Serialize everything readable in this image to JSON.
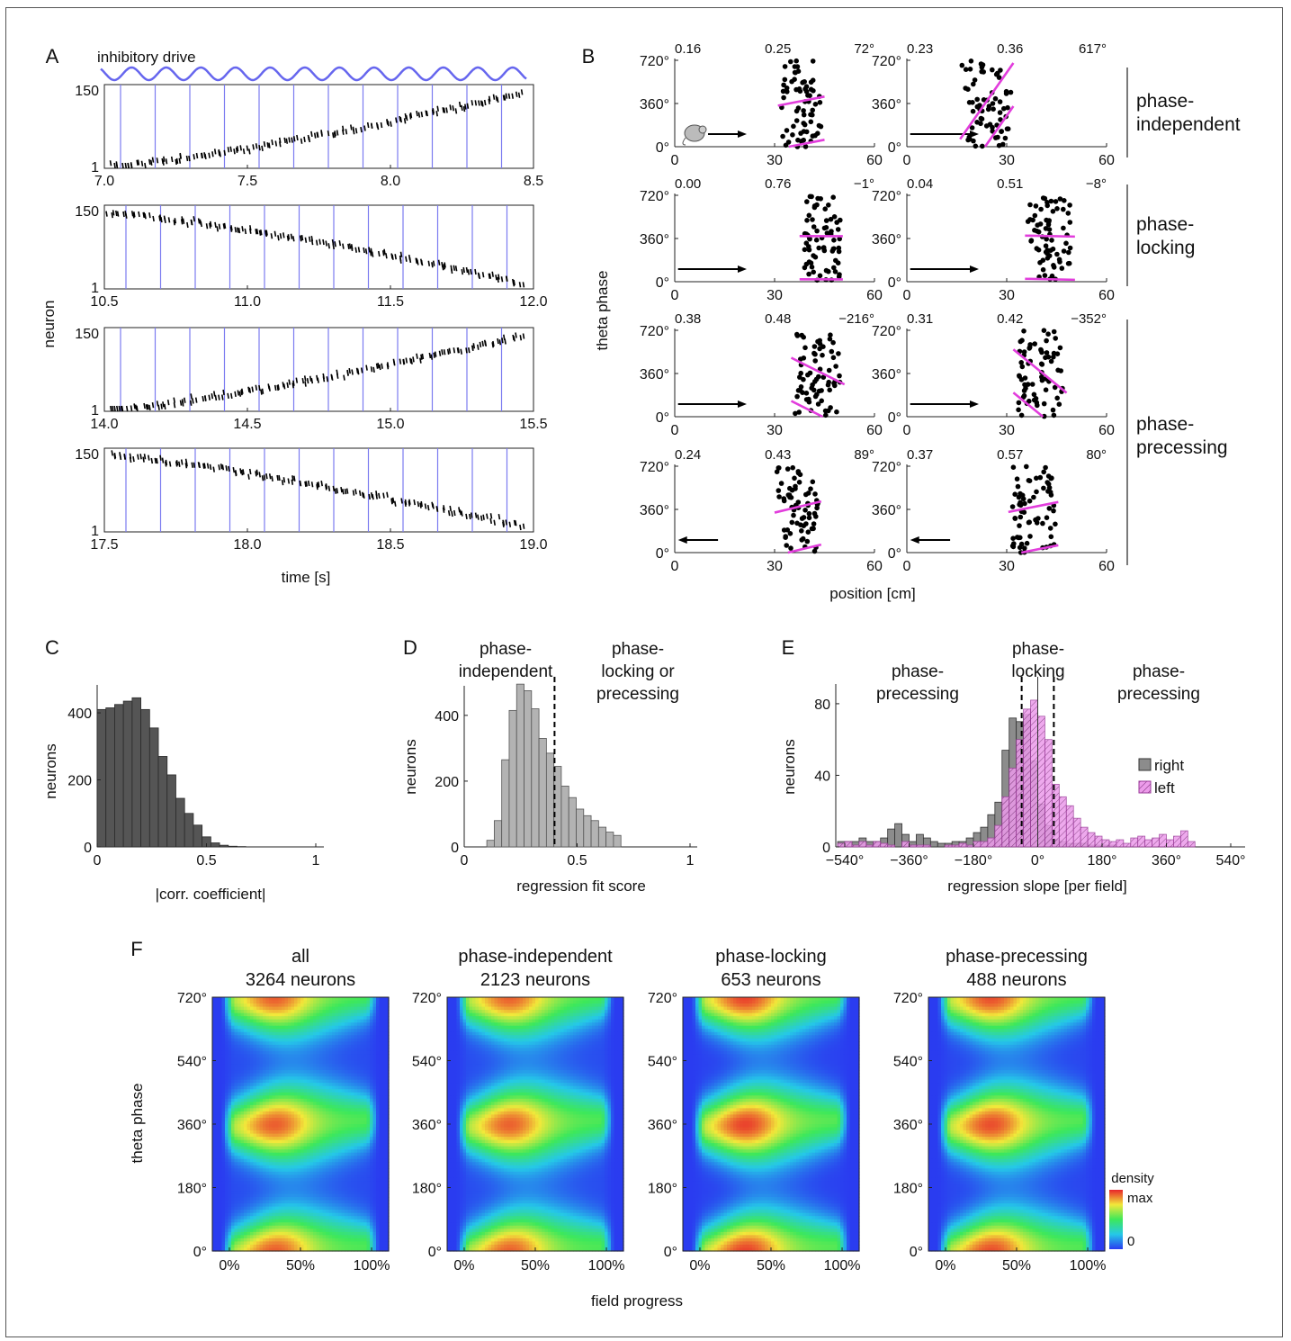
{
  "panel_letters": [
    "A",
    "B",
    "C",
    "D",
    "E",
    "F"
  ],
  "panelA": {
    "drive_label": "inhibitory drive",
    "xlabel": "time [s]",
    "ylabel": "neuron",
    "y_ticks": [
      "1",
      "150"
    ],
    "rows": [
      {
        "x_ticks": [
          "7.0",
          "7.5",
          "8.0",
          "8.5"
        ],
        "start": 7.0,
        "direction": "up"
      },
      {
        "x_ticks": [
          "10.5",
          "11.0",
          "11.5",
          "12.0"
        ],
        "start": 10.5,
        "direction": "down"
      },
      {
        "x_ticks": [
          "14.0",
          "14.5",
          "15.0",
          "15.5"
        ],
        "start": 14.0,
        "direction": "up"
      },
      {
        "x_ticks": [
          "17.5",
          "18.0",
          "18.5",
          "19.0"
        ],
        "start": 17.5,
        "direction": "down"
      }
    ]
  },
  "panelB": {
    "ylabel": "theta phase",
    "xlabel": "position [cm]",
    "y_ticks": [
      "0°",
      "360°",
      "720°"
    ],
    "x_ticks": [
      "0",
      "30",
      "60"
    ],
    "groups": [
      {
        "label_line1": "phase-",
        "label_line2": "independent"
      },
      {
        "label_line1": "phase-",
        "label_line2": "locking"
      },
      {
        "label_line1": "phase-",
        "label_line2": "precessing"
      }
    ],
    "subplots": [
      {
        "a": "0.16",
        "b": "0.25",
        "c": "72°",
        "dir": "right",
        "center": 38,
        "width": 12,
        "slope": 72,
        "mouse": true
      },
      {
        "a": "0.23",
        "b": "0.36",
        "c": "617°",
        "dir": "right",
        "center": 24,
        "width": 14,
        "slope": 617,
        "mouse": false
      },
      {
        "a": "0.00",
        "b": "0.76",
        "c": "−1°",
        "dir": "right",
        "center": 44,
        "width": 11,
        "slope": -1,
        "mouse": false
      },
      {
        "a": "0.04",
        "b": "0.51",
        "c": "−8°",
        "dir": "right",
        "center": 43,
        "width": 13,
        "slope": -8,
        "mouse": false
      },
      {
        "a": "0.38",
        "b": "0.48",
        "c": "−216°",
        "dir": "right",
        "center": 43,
        "width": 14,
        "slope": -216,
        "mouse": false
      },
      {
        "a": "0.31",
        "b": "0.42",
        "c": "−352°",
        "dir": "right",
        "center": 40,
        "width": 14,
        "slope": -352,
        "mouse": false
      },
      {
        "a": "0.24",
        "b": "0.43",
        "c": "89°",
        "dir": "left",
        "center": 37,
        "width": 12,
        "slope": 89,
        "mouse": false
      },
      {
        "a": "0.37",
        "b": "0.57",
        "c": "80°",
        "dir": "left",
        "center": 38,
        "width": 13,
        "slope": 80,
        "mouse": false
      }
    ]
  },
  "chart_data": [
    {
      "type": "bar",
      "panel": "C",
      "xlabel": "|corr. coefficient|",
      "ylabel": "neurons",
      "x_ticks": [
        "0",
        "0.5",
        "1"
      ],
      "y_ticks": [
        "0",
        "200",
        "400"
      ],
      "bin_width": 0.04,
      "values": [
        410,
        415,
        425,
        435,
        445,
        410,
        355,
        270,
        215,
        145,
        100,
        65,
        30,
        12,
        5,
        2,
        1
      ],
      "ylim": [
        0,
        470
      ]
    },
    {
      "type": "bar",
      "panel": "D",
      "xlabel": "regression fit score",
      "ylabel": "neurons",
      "x_ticks": [
        "0",
        "0.5",
        "1"
      ],
      "y_ticks": [
        "0",
        "200",
        "400"
      ],
      "bin_start": 0.1,
      "bin_width": 0.033,
      "values": [
        20,
        80,
        265,
        415,
        495,
        475,
        420,
        330,
        285,
        245,
        185,
        150,
        115,
        95,
        80,
        60,
        45,
        35
      ],
      "threshold": 0.4,
      "annotations": [
        "phase-",
        "independent",
        "phase-",
        "locking or",
        "precessing"
      ],
      "ylim": [
        0,
        520
      ]
    },
    {
      "type": "bar",
      "panel": "E",
      "xlabel": "regression slope [per field]",
      "ylabel": "neurons",
      "x_ticks": [
        "−540°",
        "−360°",
        "−180°",
        "0°",
        "180°",
        "360°",
        "540°"
      ],
      "y_ticks": [
        "0",
        "40",
        "80"
      ],
      "bin_start": -560,
      "bin_width": 20,
      "series": [
        {
          "name": "right",
          "values": [
            3,
            3,
            3,
            5,
            3,
            3,
            5,
            10,
            13,
            7,
            3,
            7,
            5,
            3,
            2,
            2,
            3,
            3,
            5,
            8,
            11,
            18,
            25,
            54,
            72,
            70,
            74,
            48,
            24,
            12,
            4,
            3,
            2,
            2,
            2,
            1,
            1,
            1,
            1,
            0,
            0,
            0,
            0,
            0,
            0,
            0,
            0,
            0,
            0,
            0
          ]
        },
        {
          "name": "left",
          "values": [
            2,
            3,
            1,
            3,
            1,
            3,
            2,
            1,
            0,
            3,
            1,
            1,
            1,
            0,
            0,
            1,
            1,
            2,
            1,
            3,
            3,
            5,
            12,
            28,
            44,
            60,
            77,
            82,
            73,
            60,
            35,
            28,
            23,
            16,
            11,
            8,
            6,
            4,
            3,
            4,
            2,
            5,
            6,
            4,
            5,
            7,
            4,
            6,
            9,
            3
          ]
        }
      ],
      "thresholds": [
        -45,
        45
      ],
      "annotations": [
        "phase-",
        "precessing",
        "phase-",
        "locking",
        "phase-",
        "precessing"
      ],
      "ylim": [
        0,
        88
      ]
    },
    {
      "type": "heatmap",
      "panel": "F",
      "xlabel": "field progress",
      "ylabel": "theta phase",
      "x_ticks": [
        "0%",
        "50%",
        "100%"
      ],
      "y_ticks": [
        "0°",
        "180°",
        "360°",
        "540°",
        "720°"
      ],
      "colorbar_label": "density",
      "colorbar_ticks": [
        "max",
        "0"
      ],
      "panels": [
        {
          "title": "all",
          "subtitle": "3264 neurons",
          "band_strength": 0.55
        },
        {
          "title": "phase-independent",
          "subtitle": "2123 neurons",
          "band_strength": 0.6
        },
        {
          "title": "phase-locking",
          "subtitle": "653 neurons",
          "band_strength": 0.2
        },
        {
          "title": "phase-precessing",
          "subtitle": "488 neurons",
          "band_strength": 0.35
        }
      ]
    }
  ],
  "legendE": [
    {
      "label": "right",
      "color": "#777777"
    },
    {
      "label": "left",
      "color": "#e07ce0"
    }
  ],
  "colors": {
    "drive": "#6666ee",
    "magenta": "#e23ddc",
    "dark_bar": "#555555",
    "light_bar": "#b3b3b3"
  }
}
